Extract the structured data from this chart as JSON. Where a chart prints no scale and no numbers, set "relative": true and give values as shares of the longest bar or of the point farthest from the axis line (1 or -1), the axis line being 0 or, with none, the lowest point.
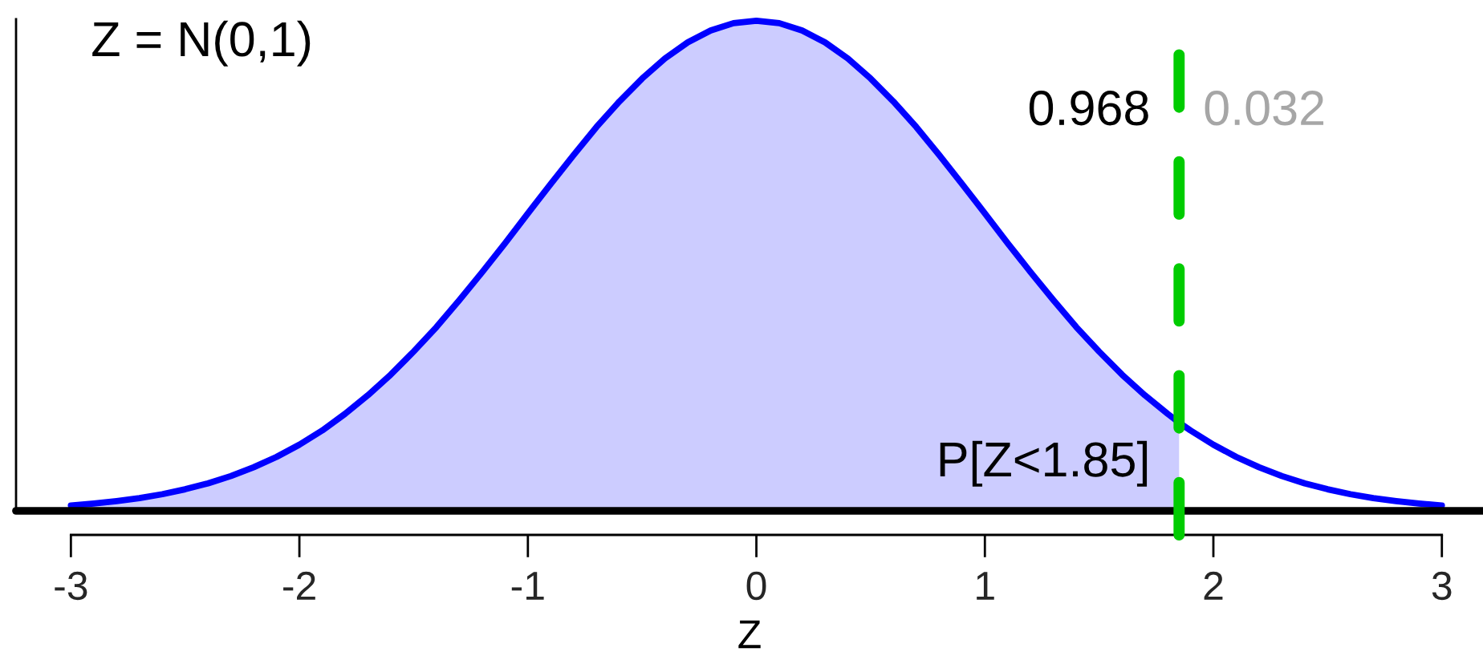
{
  "chart_data": {
    "type": "area",
    "title": "Z = N(0,1)",
    "xlabel": "Z",
    "relative": true,
    "tick_labels": "x",
    "xlim": [
      -3.24,
      3.18
    ],
    "xticks": [
      -3,
      -2,
      -1,
      0,
      1,
      2,
      3
    ],
    "series": [
      {
        "color": "#ccccff",
        "x": [
          -3,
          -2.9,
          -2.8,
          -2.7,
          -2.6,
          -2.5,
          -2.4,
          -2.3,
          -2.2,
          -2.1,
          -2,
          -1.9,
          -1.8,
          -1.7,
          -1.6,
          -1.5,
          -1.4,
          -1.3,
          -1.2,
          -1.1,
          -1,
          -0.9,
          -0.8,
          -0.7,
          -0.6,
          -0.5,
          -0.4,
          -0.3,
          -0.2,
          -0.1,
          0,
          0.1,
          0.2,
          0.3,
          0.4,
          0.5,
          0.6,
          0.7,
          0.8,
          0.9,
          1,
          1.1,
          1.2,
          1.3,
          1.4,
          1.5,
          1.6,
          1.7,
          1.8,
          1.85
        ],
        "values": [
          0.011,
          0.015,
          0.02,
          0.026,
          0.034,
          0.044,
          0.056,
          0.071,
          0.089,
          0.11,
          0.135,
          0.164,
          0.198,
          0.236,
          0.278,
          0.325,
          0.375,
          0.43,
          0.487,
          0.546,
          0.607,
          0.667,
          0.726,
          0.783,
          0.835,
          0.882,
          0.923,
          0.956,
          0.98,
          0.995,
          1.0,
          0.995,
          0.98,
          0.956,
          0.923,
          0.882,
          0.835,
          0.783,
          0.726,
          0.667,
          0.607,
          0.546,
          0.487,
          0.43,
          0.375,
          0.325,
          0.278,
          0.236,
          0.198,
          0.18
        ]
      },
      {
        "type": "line",
        "color": "#0000ff",
        "x": [
          -3,
          -2.9,
          -2.8,
          -2.7,
          -2.6,
          -2.5,
          -2.4,
          -2.3,
          -2.2,
          -2.1,
          -2,
          -1.9,
          -1.8,
          -1.7,
          -1.6,
          -1.5,
          -1.4,
          -1.3,
          -1.2,
          -1.1,
          -1,
          -0.9,
          -0.8,
          -0.7,
          -0.6,
          -0.5,
          -0.4,
          -0.3,
          -0.2,
          -0.1,
          0,
          0.1,
          0.2,
          0.3,
          0.4,
          0.5,
          0.6,
          0.7,
          0.8,
          0.9,
          1,
          1.1,
          1.2,
          1.3,
          1.4,
          1.5,
          1.6,
          1.7,
          1.8,
          1.85,
          1.9,
          2,
          2.1,
          2.2,
          2.3,
          2.4,
          2.5,
          2.6,
          2.7,
          2.8,
          2.9,
          3
        ],
        "values": [
          0.011,
          0.015,
          0.02,
          0.026,
          0.034,
          0.044,
          0.056,
          0.071,
          0.089,
          0.11,
          0.135,
          0.164,
          0.198,
          0.236,
          0.278,
          0.325,
          0.375,
          0.43,
          0.487,
          0.546,
          0.607,
          0.667,
          0.726,
          0.783,
          0.835,
          0.882,
          0.923,
          0.956,
          0.98,
          0.995,
          1.0,
          0.995,
          0.98,
          0.956,
          0.923,
          0.882,
          0.835,
          0.783,
          0.726,
          0.667,
          0.607,
          0.546,
          0.487,
          0.43,
          0.375,
          0.325,
          0.278,
          0.236,
          0.198,
          0.18,
          0.164,
          0.135,
          0.11,
          0.089,
          0.071,
          0.056,
          0.044,
          0.034,
          0.026,
          0.02,
          0.015,
          0.011
        ]
      }
    ],
    "ref_lines": [
      {
        "axis": "x",
        "value": 1.85,
        "color": "#00cc00",
        "line_style": "dashed"
      },
      {
        "axis": "y",
        "value": 0,
        "color": "#000000",
        "line_style": "solid"
      }
    ],
    "annotations": [
      "0.968",
      "0.032",
      "P[Z<1.85]"
    ]
  }
}
